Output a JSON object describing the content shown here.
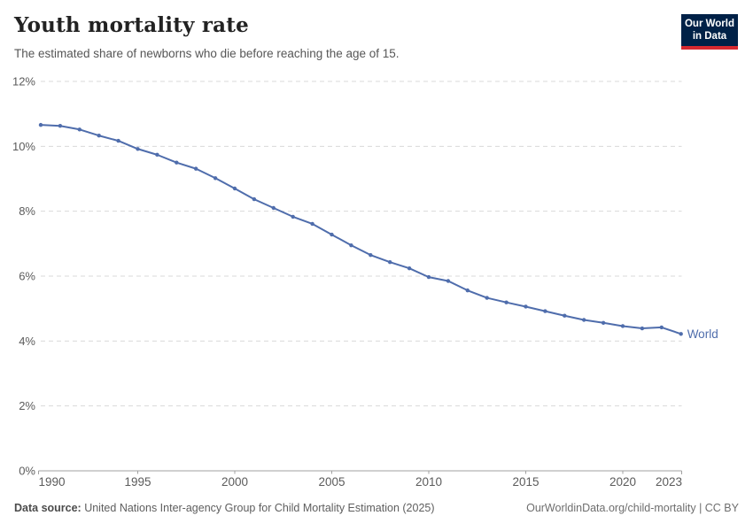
{
  "header": {
    "title": "Youth mortality rate",
    "subtitle": "The estimated share of newborns who die before reaching the age of 15.",
    "logo": {
      "line1": "Our World",
      "line2": "in Data"
    }
  },
  "chart_data": {
    "type": "line",
    "title": "Youth mortality rate",
    "unit": "%",
    "ylim": [
      0,
      12
    ],
    "grid": "horizontal-dashed",
    "legend_position": "end-of-line-label",
    "x": [
      1990,
      1991,
      1992,
      1993,
      1994,
      1995,
      1996,
      1997,
      1998,
      1999,
      2000,
      2001,
      2002,
      2003,
      2004,
      2005,
      2006,
      2007,
      2008,
      2009,
      2010,
      2011,
      2012,
      2013,
      2014,
      2015,
      2016,
      2017,
      2018,
      2019,
      2020,
      2021,
      2022,
      2023
    ],
    "series": [
      {
        "name": "World",
        "color": "#4F6DAC",
        "values": [
          10.66,
          10.63,
          10.52,
          10.33,
          10.17,
          9.92,
          9.74,
          9.5,
          9.31,
          9.02,
          8.7,
          8.37,
          8.1,
          7.83,
          7.61,
          7.28,
          6.95,
          6.65,
          6.43,
          6.24,
          5.97,
          5.85,
          5.56,
          5.33,
          5.19,
          5.06,
          4.92,
          4.78,
          4.65,
          4.56,
          4.46,
          4.39,
          4.42,
          4.22
        ]
      }
    ],
    "y_tick_values": [
      0,
      2,
      4,
      6,
      8,
      10,
      12
    ],
    "y_tick_labels": [
      "0%",
      "2%",
      "4%",
      "6%",
      "8%",
      "10%",
      "12%"
    ],
    "x_tick_years": [
      1990,
      1995,
      2000,
      2005,
      2010,
      2015,
      2020,
      2023
    ],
    "x_tick_labels": [
      "1990",
      "1995",
      "2000",
      "2005",
      "2010",
      "2015",
      "2020",
      "2023"
    ]
  },
  "footer": {
    "source_label": "Data source:",
    "source_text": " United Nations Inter-agency Group for Child Mortality Estimation (2025)",
    "link_text": "OurWorldinData.org/child-mortality | CC BY"
  },
  "colors": {
    "line": "#4F6DAC",
    "entity_label": "#4F6DAC",
    "gridline": "#d9d9d9",
    "axis": "#a1a1a1",
    "tick_text": "#5b5b5b",
    "logo_bg": "#002147",
    "logo_bar": "#D7292F"
  }
}
